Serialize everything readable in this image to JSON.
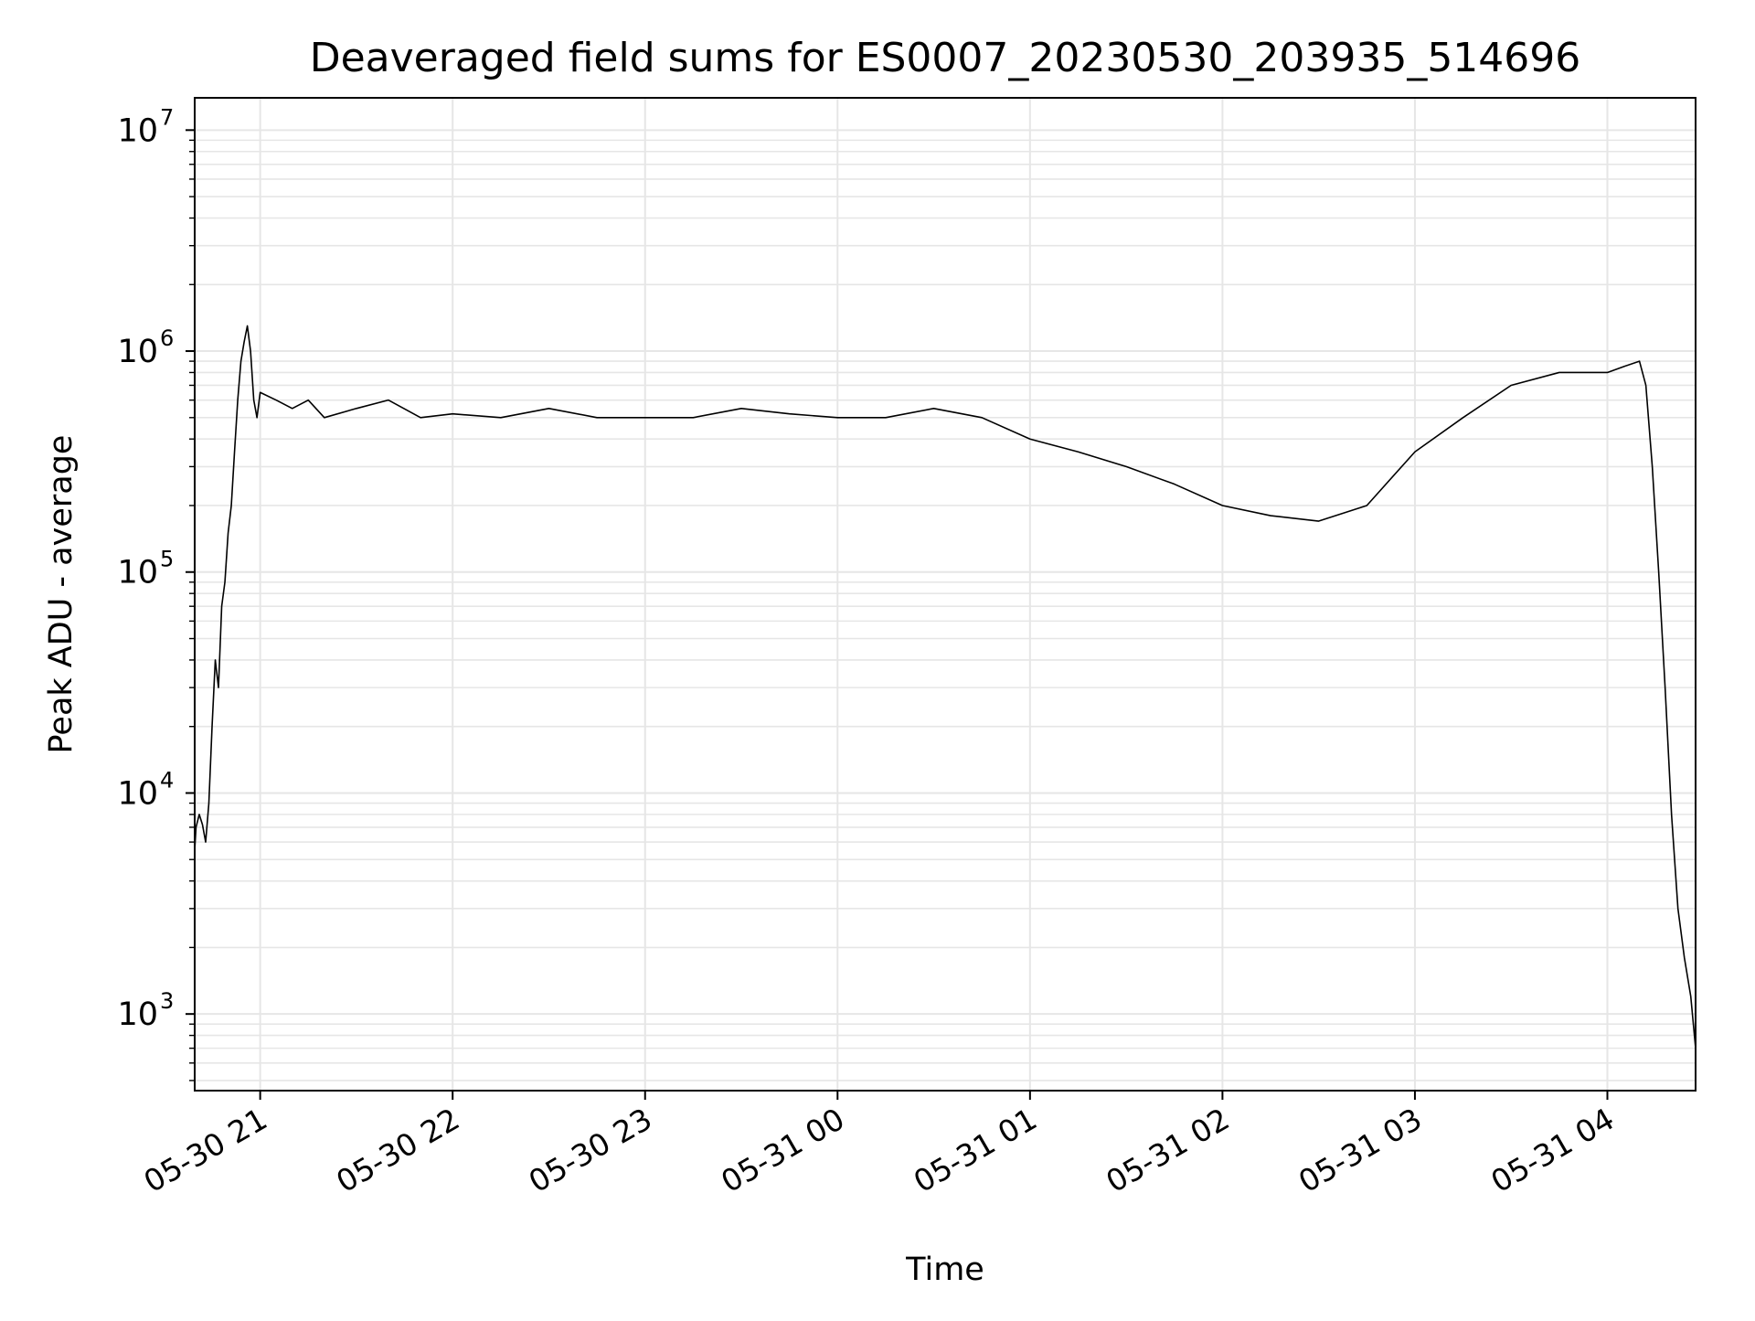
{
  "chart_data": {
    "type": "line",
    "title": "Deaveraged field sums for ES0007_20230530_203935_514696",
    "xlabel": "Time",
    "ylabel": "Peak ADU - average",
    "yscale": "log",
    "ylim": [
      450,
      14000000
    ],
    "xlim": [
      "2023-05-30 20:39:35",
      "2023-05-31 04:27:30"
    ],
    "grid": true,
    "line_color": "#000000",
    "grid_color": "#e6e6e6",
    "x_ticks": [
      {
        "t": "2023-05-30 21:00:00",
        "label": "05-30 21"
      },
      {
        "t": "2023-05-30 22:00:00",
        "label": "05-30 22"
      },
      {
        "t": "2023-05-30 23:00:00",
        "label": "05-30 23"
      },
      {
        "t": "2023-05-31 00:00:00",
        "label": "05-31 00"
      },
      {
        "t": "2023-05-31 01:00:00",
        "label": "05-31 01"
      },
      {
        "t": "2023-05-31 02:00:00",
        "label": "05-31 02"
      },
      {
        "t": "2023-05-31 03:00:00",
        "label": "05-31 03"
      },
      {
        "t": "2023-05-31 04:00:00",
        "label": "05-31 04"
      }
    ],
    "y_ticks": [
      {
        "value": 1000,
        "base": "10",
        "exp": "3"
      },
      {
        "value": 10000,
        "base": "10",
        "exp": "4"
      },
      {
        "value": 100000,
        "base": "10",
        "exp": "5"
      },
      {
        "value": 1000000,
        "base": "10",
        "exp": "6"
      },
      {
        "value": 10000000,
        "base": "10",
        "exp": "7"
      }
    ],
    "series": [
      {
        "x": [
          "2023-05-30 20:39:35",
          "2023-05-30 20:40:00",
          "2023-05-30 20:41:00",
          "2023-05-30 20:42:00",
          "2023-05-30 20:43:00",
          "2023-05-30 20:44:00",
          "2023-05-30 20:45:00",
          "2023-05-30 20:46:00",
          "2023-05-30 20:47:00",
          "2023-05-30 20:48:00",
          "2023-05-30 20:49:00",
          "2023-05-30 20:50:00",
          "2023-05-30 20:51:00",
          "2023-05-30 20:52:00",
          "2023-05-30 20:53:00",
          "2023-05-30 20:54:00",
          "2023-05-30 20:55:00",
          "2023-05-30 20:56:00",
          "2023-05-30 20:57:00",
          "2023-05-30 20:58:00",
          "2023-05-30 20:59:00",
          "2023-05-30 21:00:00",
          "2023-05-30 21:05:00",
          "2023-05-30 21:10:00",
          "2023-05-30 21:15:00",
          "2023-05-30 21:20:00",
          "2023-05-30 21:30:00",
          "2023-05-30 21:40:00",
          "2023-05-30 21:50:00",
          "2023-05-30 22:00:00",
          "2023-05-30 22:15:00",
          "2023-05-30 22:30:00",
          "2023-05-30 22:45:00",
          "2023-05-30 23:00:00",
          "2023-05-30 23:15:00",
          "2023-05-30 23:30:00",
          "2023-05-30 23:45:00",
          "2023-05-31 00:00:00",
          "2023-05-31 00:15:00",
          "2023-05-31 00:30:00",
          "2023-05-31 00:45:00",
          "2023-05-31 01:00:00",
          "2023-05-31 01:15:00",
          "2023-05-31 01:30:00",
          "2023-05-31 01:45:00",
          "2023-05-31 02:00:00",
          "2023-05-31 02:15:00",
          "2023-05-31 02:30:00",
          "2023-05-31 02:45:00",
          "2023-05-31 03:00:00",
          "2023-05-31 03:15:00",
          "2023-05-31 03:30:00",
          "2023-05-31 03:45:00",
          "2023-05-31 04:00:00",
          "2023-05-31 04:05:00",
          "2023-05-31 04:10:00",
          "2023-05-31 04:12:00",
          "2023-05-31 04:14:00",
          "2023-05-31 04:16:00",
          "2023-05-31 04:18:00",
          "2023-05-31 04:20:00",
          "2023-05-31 04:22:00",
          "2023-05-31 04:24:00",
          "2023-05-31 04:26:00",
          "2023-05-31 04:27:30"
        ],
        "y": [
          5500,
          7000,
          8000,
          7200,
          6000,
          9000,
          20000,
          40000,
          30000,
          70000,
          90000,
          150000,
          200000,
          350000,
          600000,
          900000,
          1100000,
          1300000,
          1000000,
          600000,
          500000,
          650000,
          600000,
          550000,
          600000,
          500000,
          550000,
          600000,
          500000,
          520000,
          500000,
          550000,
          500000,
          500000,
          500000,
          550000,
          520000,
          500000,
          500000,
          550000,
          500000,
          400000,
          350000,
          300000,
          250000,
          200000,
          180000,
          170000,
          200000,
          350000,
          500000,
          700000,
          800000,
          800000,
          850000,
          900000,
          700000,
          300000,
          100000,
          30000,
          8000,
          3000,
          1800,
          1200,
          700
        ]
      }
    ]
  }
}
